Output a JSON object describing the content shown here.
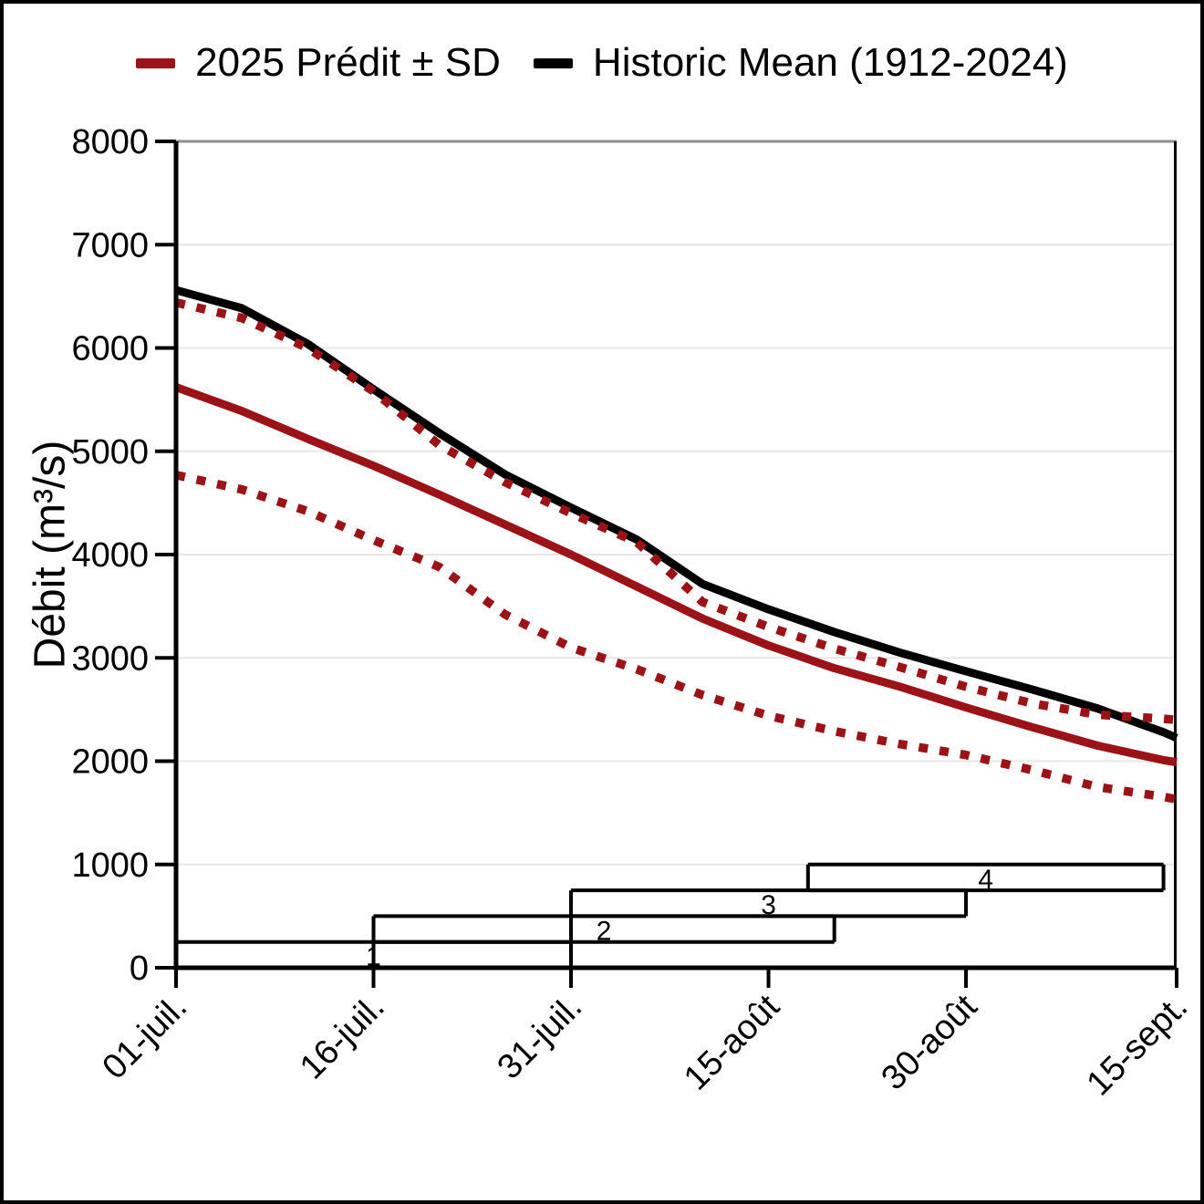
{
  "legend": {
    "items": [
      {
        "id": "predicted",
        "label": "2025 Prédit ± SD",
        "color": "#9b1217"
      },
      {
        "id": "historic",
        "label": "Historic Mean (1912-2024)",
        "color": "#000000"
      }
    ]
  },
  "axes": {
    "y_title": "Débit (m³/s)",
    "ylim": [
      0,
      8000
    ],
    "y_tick_step": 1000,
    "y_tick_labels": [
      "0",
      "1000",
      "2000",
      "3000",
      "4000",
      "5000",
      "6000",
      "7000",
      "8000"
    ],
    "x_range_days": 76,
    "x_ticks": [
      {
        "day": 0,
        "label": "01-juil."
      },
      {
        "day": 15,
        "label": "16-juil."
      },
      {
        "day": 30,
        "label": "31-juil."
      },
      {
        "day": 45,
        "label": "15-août"
      },
      {
        "day": 60,
        "label": "30-août"
      },
      {
        "day": 76,
        "label": "15-sept."
      }
    ],
    "grid": "horizontal-only",
    "gridline_color": "#e7e7e7",
    "top_line_color": "#8d8d8d"
  },
  "chart_data": {
    "type": "line",
    "title": "",
    "xlabel": "",
    "ylabel": "Débit (m³/s)",
    "ylim": [
      0,
      8000
    ],
    "x_days": [
      0,
      5,
      10,
      15,
      20,
      25,
      30,
      35,
      40,
      45,
      50,
      55,
      60,
      65,
      70,
      75,
      76
    ],
    "series": [
      {
        "name": "Historic Mean (1912-2024)",
        "color": "#000000",
        "style": "solid",
        "values": [
          6560,
          6385,
          6040,
          5600,
          5175,
          4775,
          4455,
          4145,
          3715,
          3470,
          3250,
          3050,
          2870,
          2695,
          2510,
          2280,
          2225
        ]
      },
      {
        "name": "2025 Prédit",
        "color": "#9b1217",
        "style": "solid",
        "values": [
          5620,
          5390,
          5120,
          4860,
          4580,
          4290,
          4000,
          3690,
          3380,
          3120,
          2900,
          2720,
          2520,
          2330,
          2150,
          2010,
          1990
        ]
      },
      {
        "name": "2025 Prédit + SD",
        "color": "#9b1217",
        "style": "dotted",
        "values": [
          6440,
          6290,
          6000,
          5580,
          5060,
          4700,
          4400,
          4120,
          3540,
          3300,
          3090,
          2910,
          2720,
          2560,
          2450,
          2410,
          2400
        ]
      },
      {
        "name": "2025 Prédit - SD",
        "color": "#9b1217",
        "style": "dotted",
        "values": [
          4770,
          4630,
          4420,
          4140,
          3880,
          3420,
          3100,
          2890,
          2640,
          2440,
          2290,
          2165,
          2060,
          1915,
          1750,
          1655,
          1630
        ]
      }
    ],
    "period_boxes": [
      {
        "label": "1",
        "start_day": 0,
        "end_day": 30,
        "v0": 0,
        "v1": 250,
        "left_edge_to_axis": true
      },
      {
        "label": "2",
        "start_day": 15,
        "end_day": 50,
        "v0": 250,
        "v1": 500,
        "left_edge_to_axis": true
      },
      {
        "label": "3",
        "start_day": 30,
        "end_day": 60,
        "v0": 500,
        "v1": 750,
        "left_edge_to_axis": true
      },
      {
        "label": "4",
        "start_day": 48,
        "end_day": 75,
        "v0": 750,
        "v1": 1000,
        "left_edge_to_axis": false
      }
    ],
    "legend_position": "top-center"
  }
}
